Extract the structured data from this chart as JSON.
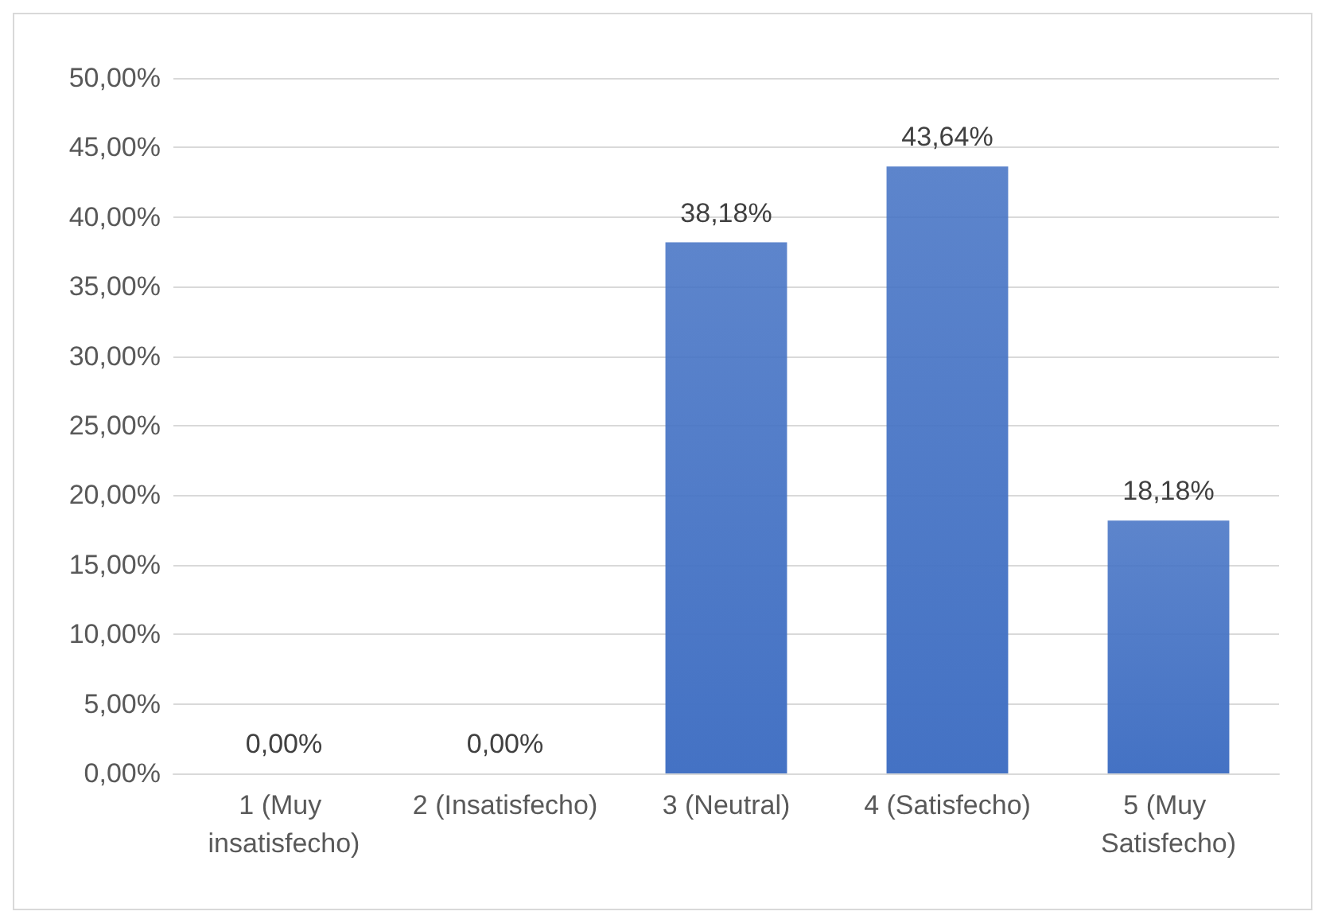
{
  "chart_data": {
    "type": "bar",
    "categories": [
      "1 (Muy insatisfecho)",
      "2 (Insatisfecho)",
      "3 (Neutral)",
      "4 (Satisfecho)",
      "5 (Muy Satisfecho)"
    ],
    "values": [
      0,
      0,
      38.18,
      43.64,
      18.18
    ],
    "value_labels": [
      "0,00%",
      "0,00%",
      "38,18%",
      "43,64%",
      "18,18%"
    ],
    "color": "#4472c4",
    "ylim": [
      0,
      50
    ],
    "yticks": [
      {
        "value": 0,
        "label": "0,00%"
      },
      {
        "value": 5,
        "label": "5,00%"
      },
      {
        "value": 10,
        "label": "10,00%"
      },
      {
        "value": 15,
        "label": "15,00%"
      },
      {
        "value": 20,
        "label": "20,00%"
      },
      {
        "value": 25,
        "label": "25,00%"
      },
      {
        "value": 30,
        "label": "30,00%"
      },
      {
        "value": 35,
        "label": "35,00%"
      },
      {
        "value": 40,
        "label": "40,00%"
      },
      {
        "value": 45,
        "label": "45,00%"
      },
      {
        "value": 50,
        "label": "50,00%"
      }
    ],
    "grid": "y"
  }
}
